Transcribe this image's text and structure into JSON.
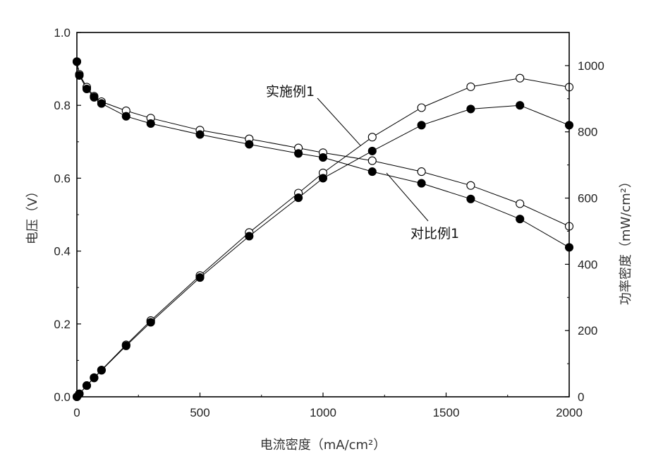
{
  "chart_data": {
    "type": "line",
    "title": "",
    "xlabel": "电流密度（mA/cm²）",
    "ylabel_left": "电压（V）",
    "ylabel_right": "功率密度（mW/cm²）",
    "xlim": [
      0,
      2000
    ],
    "ylim_left": [
      0.0,
      1.0
    ],
    "ylim_right": [
      0,
      1100
    ],
    "x_ticks": [
      "0",
      "500",
      "1000",
      "1500",
      "2000"
    ],
    "y_left_ticks": [
      "0.0",
      "0.2",
      "0.4",
      "0.6",
      "0.8",
      "1.0"
    ],
    "y_right_ticks": [
      "0",
      "200",
      "400",
      "600",
      "800",
      "1000"
    ],
    "grid": false,
    "series": [
      {
        "name": "实施例1 电压",
        "axis": "left",
        "marker": "open-circle",
        "x": [
          0,
          10,
          40,
          70,
          100,
          200,
          300,
          500,
          700,
          900,
          1000,
          1200,
          1400,
          1600,
          1800,
          2000
        ],
        "y": [
          0.92,
          0.885,
          0.85,
          0.825,
          0.81,
          0.785,
          0.765,
          0.732,
          0.708,
          0.683,
          0.67,
          0.648,
          0.618,
          0.58,
          0.53,
          0.468
        ]
      },
      {
        "name": "对比例1 电压",
        "axis": "left",
        "marker": "filled-circle",
        "x": [
          0,
          10,
          40,
          70,
          100,
          200,
          300,
          500,
          700,
          900,
          1000,
          1200,
          1400,
          1600,
          1800,
          2000
        ],
        "y": [
          0.92,
          0.882,
          0.845,
          0.822,
          0.805,
          0.77,
          0.75,
          0.72,
          0.693,
          0.668,
          0.657,
          0.618,
          0.586,
          0.543,
          0.488,
          0.41
        ]
      },
      {
        "name": "实施例1 功率密度",
        "axis": "right",
        "marker": "open-circle",
        "x": [
          0,
          10,
          40,
          70,
          100,
          200,
          300,
          500,
          700,
          900,
          1000,
          1200,
          1400,
          1600,
          1800,
          2000
        ],
        "y": [
          0,
          9,
          34,
          58,
          81,
          157,
          230,
          366,
          496,
          615,
          676,
          784,
          873,
          936,
          962,
          935
        ]
      },
      {
        "name": "对比例1 功率密度",
        "axis": "right",
        "marker": "filled-circle",
        "x": [
          0,
          10,
          40,
          70,
          100,
          200,
          300,
          500,
          700,
          900,
          1000,
          1200,
          1400,
          1600,
          1800,
          2000
        ],
        "y": [
          0,
          9,
          34,
          57,
          80,
          154,
          225,
          360,
          485,
          601,
          660,
          742,
          820,
          869,
          880,
          820
        ]
      }
    ],
    "annotations": [
      {
        "text": "实施例1",
        "points_to": {
          "x": 1150,
          "y_right": 760
        }
      },
      {
        "text": "对比例1",
        "points_to": {
          "x": 1270,
          "y_left": 0.615
        }
      }
    ]
  }
}
